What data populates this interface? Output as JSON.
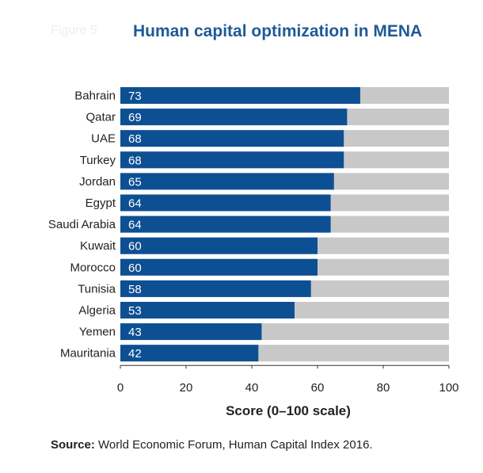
{
  "figure_label": "Figure 5",
  "chart_data": {
    "type": "bar",
    "orientation": "horizontal",
    "title": "Human capital optimization in MENA",
    "categories": [
      "Bahrain",
      "Qatar",
      "UAE",
      "Turkey",
      "Jordan",
      "Egypt",
      "Saudi Arabia",
      "Kuwait",
      "Morocco",
      "Tunisia",
      "Algeria",
      "Yemen",
      "Mauritania"
    ],
    "values": [
      73,
      69,
      68,
      68,
      65,
      64,
      64,
      60,
      60,
      58,
      53,
      43,
      42
    ],
    "value_labels": [
      "73",
      "69",
      "68",
      "68",
      "65",
      "64",
      "64",
      "60",
      "60",
      "58",
      "53",
      "43",
      "42"
    ],
    "xlabel": "Score (0–100 scale)",
    "ylabel": "",
    "xlim": [
      0,
      100
    ],
    "xticks": [
      "0",
      "20",
      "40",
      "60",
      "80",
      "100"
    ],
    "grid": false,
    "colors": {
      "bar": "#0d4f93",
      "track": "#c8c8c8",
      "label_text": "#ffffff",
      "title": "#1f5a96"
    }
  },
  "source": {
    "label": "Source:",
    "text": " World Economic Forum, Human Capital Index 2016."
  }
}
